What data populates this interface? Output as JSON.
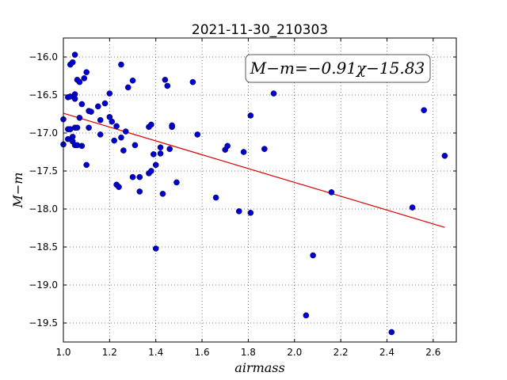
{
  "chart_data": {
    "type": "scatter",
    "title": "2021-11-30_210303",
    "xlabel": "airmass",
    "ylabel": "M−m",
    "xlim": [
      1.0,
      2.7
    ],
    "ylim": [
      -19.75,
      -15.75
    ],
    "y_inverted": true,
    "grid": true,
    "legend": "none",
    "xticks": [
      "1.0",
      "1.2",
      "1.4",
      "1.6",
      "1.8",
      "2.0",
      "2.2",
      "2.4",
      "2.6"
    ],
    "yticks": [
      "−16.0",
      "−16.5",
      "−17.0",
      "−17.5",
      "−18.0",
      "−18.5",
      "−19.0",
      "−19.5"
    ],
    "annotation": "M−m=−0.91χ−15.83",
    "point_color": "#0000cc",
    "fit_color": "#dd0000",
    "fit": {
      "slope": -0.91,
      "intercept": -15.83,
      "x_range": [
        1.0,
        2.65
      ]
    },
    "points": [
      [
        1.0,
        -16.82
      ],
      [
        1.0,
        -17.15
      ],
      [
        1.02,
        -16.53
      ],
      [
        1.02,
        -16.95
      ],
      [
        1.02,
        -17.08
      ],
      [
        1.03,
        -16.1
      ],
      [
        1.03,
        -16.52
      ],
      [
        1.03,
        -16.95
      ],
      [
        1.04,
        -16.07
      ],
      [
        1.04,
        -17.05
      ],
      [
        1.04,
        -17.11
      ],
      [
        1.05,
        -15.97
      ],
      [
        1.05,
        -16.49
      ],
      [
        1.05,
        -16.55
      ],
      [
        1.05,
        -16.93
      ],
      [
        1.05,
        -17.16
      ],
      [
        1.06,
        -16.3
      ],
      [
        1.06,
        -16.93
      ],
      [
        1.06,
        -17.16
      ],
      [
        1.07,
        -16.33
      ],
      [
        1.07,
        -16.8
      ],
      [
        1.08,
        -16.62
      ],
      [
        1.08,
        -17.17
      ],
      [
        1.09,
        -16.28
      ],
      [
        1.1,
        -16.2
      ],
      [
        1.1,
        -17.42
      ],
      [
        1.11,
        -16.71
      ],
      [
        1.11,
        -16.93
      ],
      [
        1.12,
        -16.72
      ],
      [
        1.15,
        -16.65
      ],
      [
        1.16,
        -16.83
      ],
      [
        1.16,
        -17.02
      ],
      [
        1.18,
        -16.61
      ],
      [
        1.2,
        -16.48
      ],
      [
        1.2,
        -16.79
      ],
      [
        1.21,
        -16.85
      ],
      [
        1.22,
        -17.1
      ],
      [
        1.23,
        -16.91
      ],
      [
        1.23,
        -17.68
      ],
      [
        1.24,
        -17.71
      ],
      [
        1.25,
        -16.1
      ],
      [
        1.25,
        -17.06
      ],
      [
        1.26,
        -17.23
      ],
      [
        1.27,
        -16.98
      ],
      [
        1.28,
        -16.4
      ],
      [
        1.3,
        -16.31
      ],
      [
        1.3,
        -17.58
      ],
      [
        1.31,
        -17.16
      ],
      [
        1.33,
        -17.58
      ],
      [
        1.33,
        -17.77
      ],
      [
        1.37,
        -16.92
      ],
      [
        1.37,
        -17.53
      ],
      [
        1.38,
        -16.89
      ],
      [
        1.38,
        -17.5
      ],
      [
        1.39,
        -17.28
      ],
      [
        1.4,
        -17.42
      ],
      [
        1.4,
        -18.52
      ],
      [
        1.42,
        -17.27
      ],
      [
        1.42,
        -17.19
      ],
      [
        1.43,
        -17.8
      ],
      [
        1.44,
        -16.3
      ],
      [
        1.45,
        -16.38
      ],
      [
        1.46,
        -17.21
      ],
      [
        1.47,
        -16.92
      ],
      [
        1.47,
        -16.9
      ],
      [
        1.49,
        -17.65
      ],
      [
        1.56,
        -16.33
      ],
      [
        1.58,
        -17.02
      ],
      [
        1.66,
        -17.85
      ],
      [
        1.7,
        -17.22
      ],
      [
        1.71,
        -17.17
      ],
      [
        1.76,
        -18.03
      ],
      [
        1.78,
        -17.25
      ],
      [
        1.81,
        -16.77
      ],
      [
        1.81,
        -18.05
      ],
      [
        1.87,
        -17.21
      ],
      [
        1.91,
        -16.48
      ],
      [
        2.05,
        -19.4
      ],
      [
        2.08,
        -18.61
      ],
      [
        2.16,
        -17.78
      ],
      [
        2.42,
        -19.62
      ],
      [
        2.51,
        -17.98
      ],
      [
        2.56,
        -16.7
      ],
      [
        2.65,
        -17.3
      ]
    ]
  }
}
